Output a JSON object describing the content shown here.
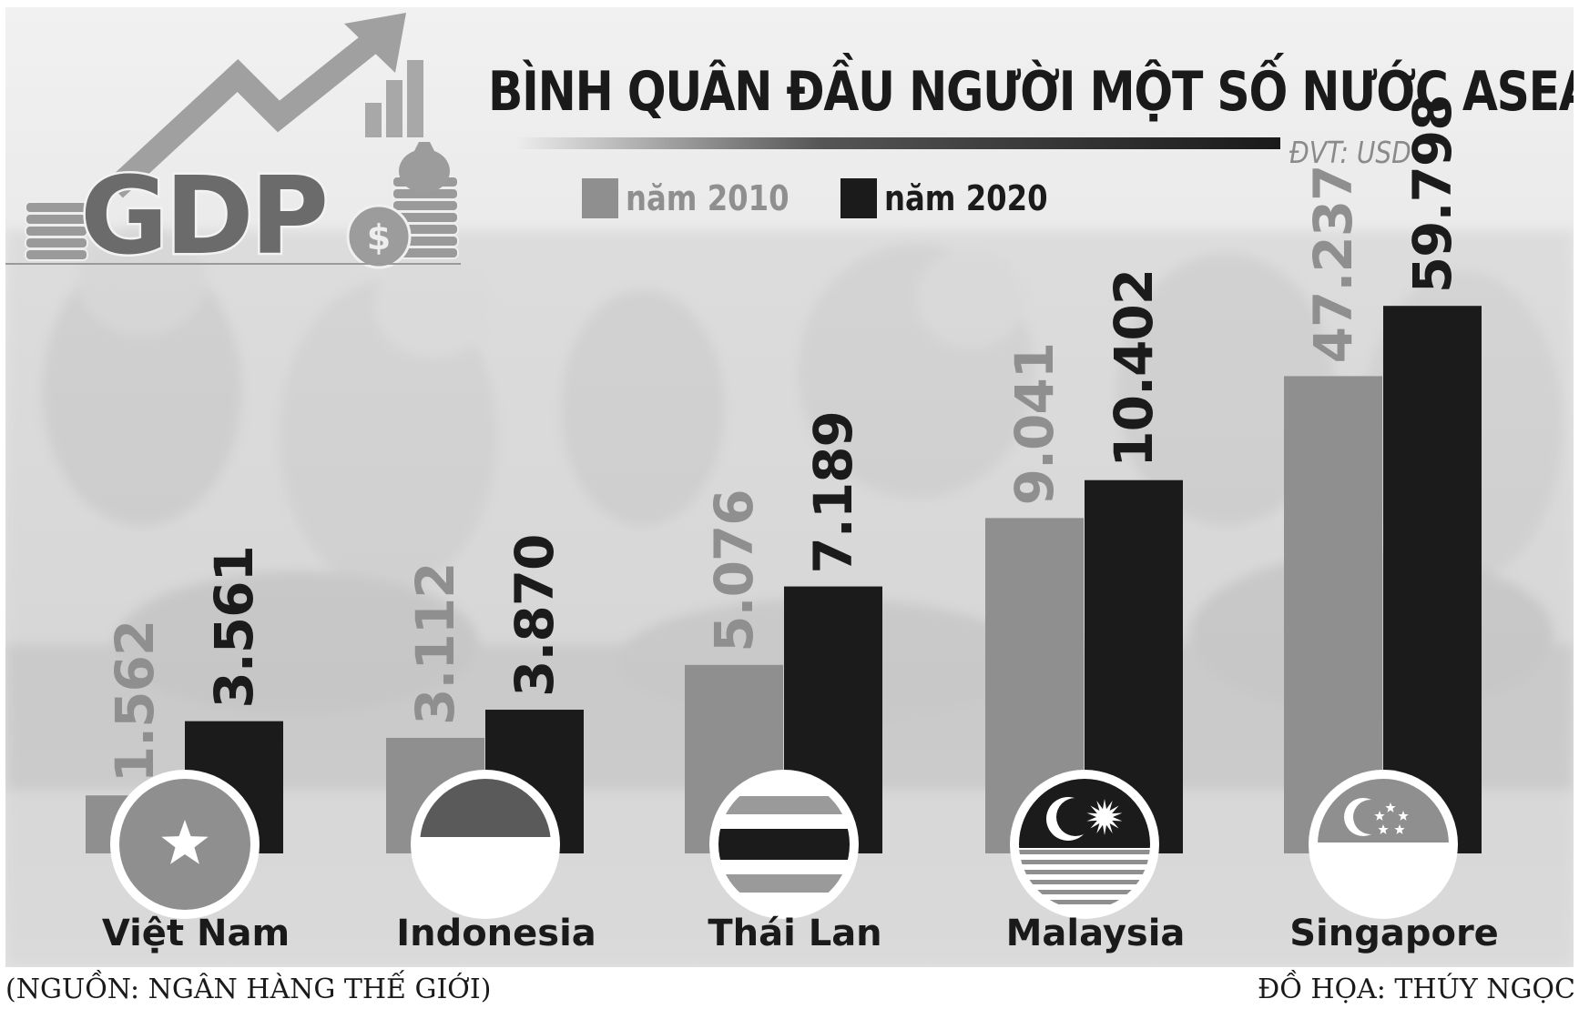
{
  "title": "BÌNH QUÂN ĐẦU NGƯỜI MỘT SỐ NƯỚC ASEAN",
  "unit_label": "ĐVT: USD",
  "logo_text": "GDP",
  "colors": {
    "series_2010": "#8f8f8f",
    "series_2020": "#1b1b1b"
  },
  "source": "(NGUỒN: NGÂN HÀNG THẾ GIỚI)",
  "credit": "ĐỒ HỌA: THÚY NGỌC",
  "chart_data": {
    "type": "bar",
    "title": "BÌNH QUÂN ĐẦU NGƯỜI MỘT SỐ NƯỚC ASEAN",
    "unit": "ĐVT: USD",
    "categories": [
      "Việt Nam",
      "Indonesia",
      "Thái Lan",
      "Malaysia",
      "Singapore"
    ],
    "flags": [
      "vietnam-flag-icon",
      "indonesia-flag-icon",
      "thailand-flag-icon",
      "malaysia-flag-icon",
      "singapore-flag-icon"
    ],
    "series": [
      {
        "name": "năm 2010",
        "values": [
          1562,
          3112,
          5076,
          9041,
          47237
        ],
        "labels": [
          "1.562",
          "3.112",
          "5.076",
          "9.041",
          "47.237"
        ]
      },
      {
        "name": "năm 2020",
        "values": [
          3561,
          3870,
          7189,
          10402,
          59798
        ],
        "labels": [
          "3.561",
          "3.870",
          "7.189",
          "10.402",
          "59.798"
        ]
      }
    ],
    "legend": "top",
    "grid": false,
    "data_labels": "rotated-vertical"
  }
}
